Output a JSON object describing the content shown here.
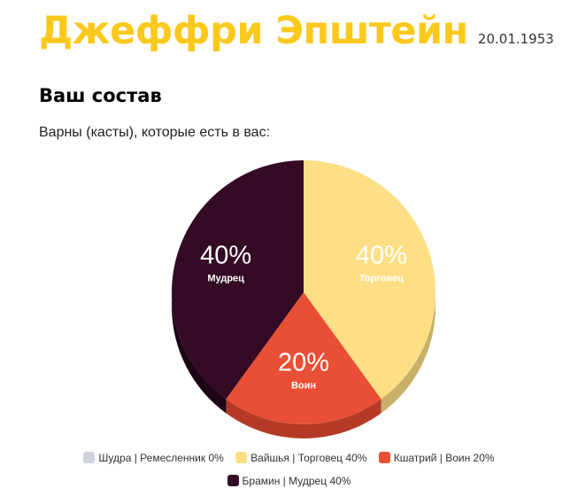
{
  "header": {
    "name": "Джеффри Эпштейн",
    "birth_date": "20.01.1953"
  },
  "section": {
    "title": "Ваш состав",
    "subtitle": "Варны (касты), которые есть в вас:"
  },
  "chart_data": {
    "type": "pie",
    "slices": [
      {
        "name": "Шудра | Ремесленник",
        "value": 0,
        "pct_label": "0%",
        "inner_label": "",
        "color": "#cfd3dc"
      },
      {
        "name": "Вайшья | Торговец",
        "value": 40,
        "pct_label": "40%",
        "inner_label": "Торговец",
        "color": "#ffdf85",
        "side_color": "#c8b068"
      },
      {
        "name": "Кшатрий | Воин",
        "value": 20,
        "pct_label": "20%",
        "inner_label": "Воин",
        "color": "#e94f35",
        "side_color": "#b53a26"
      },
      {
        "name": "Брамин | Мудрец",
        "value": 40,
        "pct_label": "40%",
        "inner_label": "Мудрец",
        "color": "#340a24",
        "side_color": "#1e0515"
      }
    ],
    "legend": [
      {
        "name": "Шудра",
        "role": "Ремесленник",
        "pct": "0%"
      },
      {
        "name": "Вайшья",
        "role": "Торговец",
        "pct": "40%"
      },
      {
        "name": "Кшатрий",
        "role": "Воин",
        "pct": "20%"
      },
      {
        "name": "Брамин",
        "role": "Мудрец",
        "pct": "40%"
      }
    ]
  }
}
